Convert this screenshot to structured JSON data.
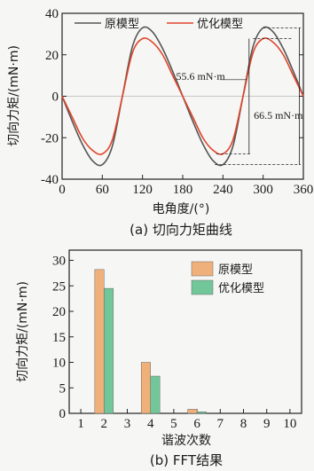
{
  "chart_data": [
    {
      "type": "line",
      "caption": "(a) 切向力矩曲线",
      "xlabel": "电角度/(°)",
      "ylabel": "切向力矩/(mN·m)",
      "xlim": [
        0,
        360
      ],
      "ylim": [
        -40,
        40
      ],
      "xticks": [
        0,
        60,
        120,
        180,
        240,
        300,
        360
      ],
      "yticks": [
        -40,
        -20,
        0,
        20,
        40
      ],
      "legend_position": "top",
      "series": [
        {
          "name": "原模型",
          "color": "#555555",
          "x": [
            0,
            15,
            30,
            45,
            60,
            75,
            90,
            105,
            120,
            135,
            150,
            165,
            180,
            195,
            210,
            225,
            240,
            255,
            270,
            285,
            300,
            315,
            330,
            345,
            360
          ],
          "y": [
            0,
            -12,
            -23,
            -31,
            -33,
            -24,
            0,
            24,
            33,
            31,
            23,
            12,
            0,
            -12,
            -23,
            -31,
            -33,
            -24,
            0,
            24,
            33,
            31,
            23,
            12,
            0
          ]
        },
        {
          "name": "优化模型",
          "color": "#e0442c",
          "x": [
            0,
            15,
            30,
            45,
            60,
            75,
            90,
            105,
            120,
            135,
            150,
            165,
            180,
            195,
            210,
            225,
            240,
            255,
            270,
            285,
            300,
            315,
            330,
            345,
            360
          ],
          "y": [
            0,
            -10,
            -20,
            -26,
            -27.8,
            -21,
            0,
            21,
            27.8,
            26,
            20,
            10,
            0,
            -10,
            -20,
            -26,
            -27.8,
            -21,
            0,
            21,
            27.8,
            26,
            20,
            10,
            0
          ]
        }
      ],
      "annotations": [
        {
          "text": "55.6  mN·m",
          "value": 55.6
        },
        {
          "text": "66.5  mN·m",
          "value": 66.5
        }
      ]
    },
    {
      "type": "bar",
      "caption": "(b) FFT结果",
      "xlabel": "谐波次数",
      "ylabel": "切向力矩/(mN·m)",
      "xlim": [
        0.5,
        10.5
      ],
      "ylim": [
        0,
        32
      ],
      "xticks": [
        1,
        2,
        3,
        4,
        5,
        6,
        7,
        8,
        9,
        10
      ],
      "yticks": [
        0,
        5,
        10,
        15,
        20,
        25,
        30
      ],
      "legend_position": "top-right",
      "categories": [
        2,
        4,
        6
      ],
      "series": [
        {
          "name": "原模型",
          "color": "#f0b07a",
          "values": [
            28.2,
            10.0,
            0.8
          ]
        },
        {
          "name": "优化模型",
          "color": "#72c79a",
          "values": [
            24.5,
            7.3,
            0.3
          ]
        }
      ]
    }
  ]
}
